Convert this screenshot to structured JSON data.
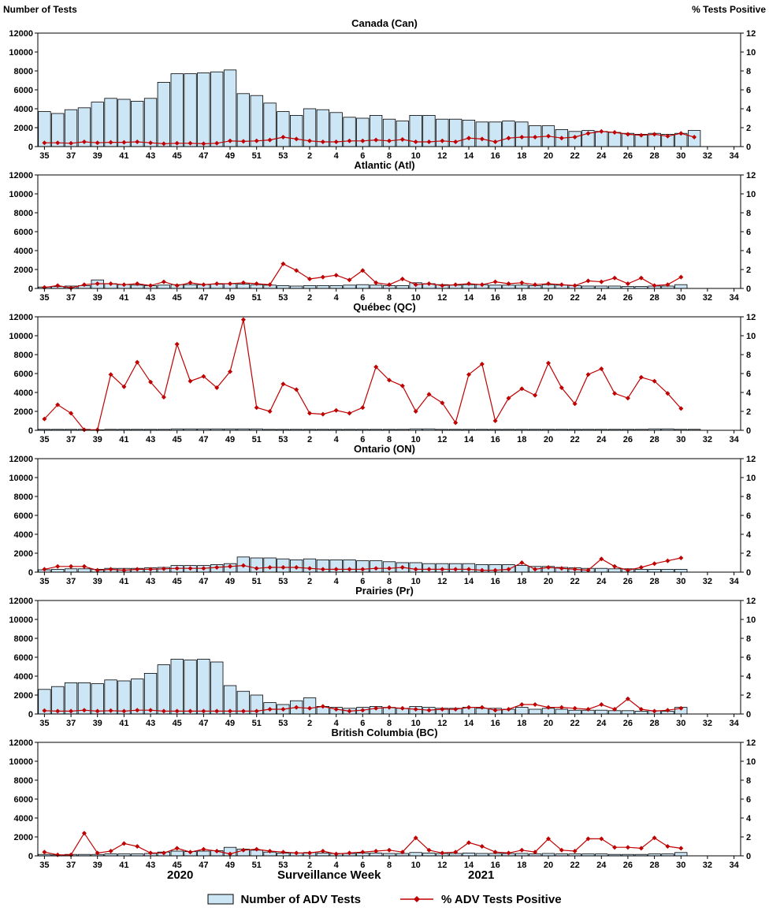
{
  "chart_data": {
    "type": "bar+line",
    "left_axis": {
      "label": "Number of Tests",
      "min": 0,
      "max": 12000,
      "step": 2000
    },
    "right_axis": {
      "label": "% Tests Positive",
      "min": 0,
      "max": 12,
      "step": 2
    },
    "xlabel": "Surveillance Week",
    "year_labels": [
      "2020",
      "2021"
    ],
    "colors": {
      "bar_fill": "#CDE6F6",
      "bar_stroke": "#000000",
      "line": "#C00000"
    },
    "legend": [
      {
        "label": "Number of ADV Tests",
        "type": "bar"
      },
      {
        "label": "% ADV Tests Positive",
        "type": "line"
      }
    ],
    "categories": [
      "35",
      "36",
      "37",
      "38",
      "39",
      "40",
      "41",
      "42",
      "43",
      "44",
      "45",
      "46",
      "47",
      "48",
      "49",
      "50",
      "51",
      "52",
      "53",
      "1",
      "2",
      "3",
      "4",
      "5",
      "6",
      "7",
      "8",
      "9",
      "10",
      "11",
      "12",
      "13",
      "14",
      "15",
      "16",
      "17",
      "18",
      "19",
      "20",
      "21",
      "22",
      "23",
      "24",
      "25",
      "26",
      "27",
      "28",
      "29",
      "30",
      "31",
      "32",
      "33",
      "34"
    ],
    "panels": [
      {
        "title": "Canada (Can)",
        "tests": [
          3700,
          3500,
          3900,
          4100,
          4700,
          5100,
          5000,
          4800,
          5100,
          6800,
          7700,
          7700,
          7800,
          7900,
          8100,
          5600,
          5400,
          4600,
          3700,
          3300,
          4000,
          3900,
          3600,
          3100,
          3000,
          3300,
          2900,
          2700,
          3300,
          3300,
          2900,
          2900,
          2800,
          2600,
          2600,
          2700,
          2600,
          2200,
          2200,
          1800,
          1600,
          1700,
          1600,
          1500,
          1400,
          1300,
          1400,
          1300,
          1400,
          1700,
          0,
          0,
          0
        ],
        "pct_positive": [
          0.4,
          0.4,
          0.35,
          0.5,
          0.4,
          0.45,
          0.45,
          0.5,
          0.4,
          0.3,
          0.35,
          0.35,
          0.3,
          0.35,
          0.6,
          0.55,
          0.6,
          0.7,
          1.0,
          0.8,
          0.6,
          0.5,
          0.5,
          0.6,
          0.6,
          0.7,
          0.6,
          0.75,
          0.5,
          0.5,
          0.6,
          0.5,
          0.9,
          0.8,
          0.5,
          0.9,
          1.0,
          1.0,
          1.1,
          0.9,
          1.0,
          1.4,
          1.6,
          1.5,
          1.3,
          1.2,
          1.3,
          1.1,
          1.4,
          1.0,
          null,
          null,
          null
        ]
      },
      {
        "title": "Atlantic (Atl)",
        "tests": [
          150,
          200,
          250,
          300,
          900,
          500,
          400,
          350,
          300,
          350,
          400,
          400,
          400,
          450,
          500,
          450,
          400,
          350,
          300,
          250,
          300,
          300,
          300,
          350,
          400,
          350,
          300,
          300,
          600,
          500,
          400,
          350,
          400,
          400,
          350,
          350,
          350,
          300,
          400,
          350,
          300,
          250,
          250,
          250,
          200,
          200,
          250,
          250,
          400,
          0,
          0,
          0,
          0
        ],
        "pct_positive": [
          0.1,
          0.3,
          0.05,
          0.4,
          0.5,
          0.5,
          0.4,
          0.5,
          0.3,
          0.7,
          0.3,
          0.6,
          0.4,
          0.5,
          0.5,
          0.6,
          0.5,
          0.4,
          2.6,
          1.9,
          1.0,
          1.2,
          1.4,
          0.9,
          1.9,
          0.6,
          0.4,
          1.0,
          0.4,
          0.5,
          0.3,
          0.4,
          0.5,
          0.4,
          0.7,
          0.5,
          0.6,
          0.4,
          0.5,
          0.4,
          0.3,
          0.8,
          0.7,
          1.1,
          0.5,
          1.1,
          0.3,
          0.4,
          1.2,
          null,
          null,
          null,
          null
        ]
      },
      {
        "title": "Québec (QC)",
        "tests": [
          100,
          100,
          100,
          100,
          50,
          100,
          100,
          100,
          100,
          100,
          150,
          150,
          150,
          150,
          150,
          150,
          150,
          100,
          100,
          100,
          100,
          100,
          100,
          100,
          100,
          100,
          100,
          100,
          150,
          150,
          100,
          100,
          100,
          100,
          100,
          100,
          100,
          100,
          100,
          100,
          100,
          100,
          100,
          100,
          100,
          100,
          150,
          150,
          100,
          100,
          0,
          0,
          0
        ],
        "pct_positive": [
          1.2,
          2.7,
          1.8,
          0.05,
          0.05,
          5.9,
          4.6,
          7.2,
          5.1,
          3.5,
          9.1,
          5.2,
          5.7,
          4.5,
          6.2,
          11.7,
          2.4,
          2.0,
          4.9,
          4.3,
          1.8,
          1.7,
          2.1,
          1.8,
          2.4,
          6.7,
          5.3,
          4.7,
          2.0,
          3.8,
          2.9,
          0.8,
          5.9,
          7.0,
          1.0,
          3.4,
          4.4,
          3.7,
          7.1,
          4.5,
          2.8,
          5.9,
          6.5,
          3.9,
          3.4,
          5.6,
          5.2,
          3.9,
          2.3,
          null,
          null,
          null,
          null
        ]
      },
      {
        "title": "Ontario (ON)",
        "tests": [
          250,
          300,
          350,
          350,
          300,
          400,
          400,
          400,
          450,
          500,
          700,
          700,
          700,
          800,
          900,
          1600,
          1500,
          1500,
          1400,
          1300,
          1400,
          1300,
          1300,
          1300,
          1200,
          1200,
          1100,
          1000,
          1000,
          900,
          900,
          900,
          900,
          800,
          800,
          800,
          700,
          600,
          600,
          500,
          450,
          400,
          400,
          350,
          350,
          300,
          300,
          300,
          300,
          0,
          0,
          0,
          0
        ],
        "pct_positive": [
          0.3,
          0.6,
          0.6,
          0.6,
          0.2,
          0.3,
          0.2,
          0.3,
          0.3,
          0.35,
          0.4,
          0.4,
          0.4,
          0.5,
          0.6,
          0.7,
          0.4,
          0.5,
          0.5,
          0.5,
          0.4,
          0.3,
          0.3,
          0.3,
          0.3,
          0.4,
          0.4,
          0.5,
          0.3,
          0.3,
          0.3,
          0.3,
          0.3,
          0.2,
          0.2,
          0.3,
          1.0,
          0.3,
          0.5,
          0.4,
          0.3,
          0.2,
          1.4,
          0.6,
          0.2,
          0.5,
          0.9,
          1.2,
          1.5,
          null,
          null,
          null,
          null
        ]
      },
      {
        "title": "Prairies (Pr)",
        "tests": [
          2600,
          2900,
          3300,
          3300,
          3200,
          3600,
          3500,
          3700,
          4300,
          5200,
          5800,
          5700,
          5800,
          5500,
          3000,
          2400,
          2000,
          1200,
          1000,
          1400,
          1700,
          800,
          700,
          600,
          700,
          800,
          700,
          600,
          800,
          700,
          600,
          600,
          700,
          600,
          600,
          500,
          700,
          500,
          600,
          500,
          400,
          400,
          400,
          350,
          350,
          300,
          350,
          300,
          700,
          0,
          0,
          0,
          0
        ],
        "pct_positive": [
          0.35,
          0.3,
          0.3,
          0.4,
          0.3,
          0.35,
          0.3,
          0.4,
          0.4,
          0.3,
          0.3,
          0.3,
          0.3,
          0.3,
          0.3,
          0.3,
          0.3,
          0.5,
          0.5,
          0.7,
          0.6,
          0.8,
          0.5,
          0.3,
          0.4,
          0.6,
          0.7,
          0.6,
          0.5,
          0.4,
          0.5,
          0.5,
          0.7,
          0.7,
          0.4,
          0.5,
          1.0,
          1.0,
          0.7,
          0.7,
          0.6,
          0.5,
          1.0,
          0.5,
          1.6,
          0.5,
          0.3,
          0.4,
          0.6,
          null,
          null,
          null,
          null
        ]
      },
      {
        "title": "British Columbia (BC)",
        "tests": [
          150,
          100,
          150,
          150,
          150,
          200,
          200,
          200,
          250,
          400,
          500,
          450,
          500,
          550,
          900,
          700,
          600,
          400,
          300,
          300,
          350,
          300,
          250,
          250,
          300,
          300,
          250,
          250,
          350,
          300,
          250,
          250,
          300,
          250,
          250,
          250,
          250,
          200,
          250,
          200,
          200,
          200,
          200,
          150,
          150,
          150,
          200,
          200,
          350,
          0,
          0,
          0,
          0
        ],
        "pct_positive": [
          0.4,
          0.1,
          0.1,
          2.4,
          0.3,
          0.5,
          1.3,
          1.0,
          0.3,
          0.3,
          0.8,
          0.4,
          0.7,
          0.5,
          0.2,
          0.6,
          0.7,
          0.5,
          0.4,
          0.3,
          0.3,
          0.5,
          0.2,
          0.3,
          0.4,
          0.5,
          0.6,
          0.4,
          1.9,
          0.6,
          0.3,
          0.4,
          1.4,
          1.0,
          0.4,
          0.3,
          0.6,
          0.4,
          1.8,
          0.6,
          0.5,
          1.8,
          1.8,
          0.9,
          0.9,
          0.8,
          1.9,
          1.0,
          0.8,
          null,
          null,
          null,
          null
        ]
      }
    ]
  }
}
